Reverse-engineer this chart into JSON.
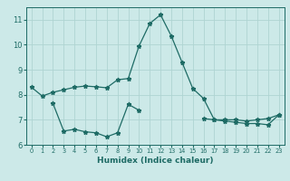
{
  "xlabel": "Humidex (Indice chaleur)",
  "background_color": "#cce9e8",
  "grid_color": "#afd4d2",
  "line_color": "#1e6b65",
  "x_values": [
    0,
    1,
    2,
    3,
    4,
    5,
    6,
    7,
    8,
    9,
    10,
    11,
    12,
    13,
    14,
    15,
    16,
    17,
    18,
    19,
    20,
    21,
    22,
    23
  ],
  "line1_y": [
    8.3,
    7.95,
    8.1,
    8.2,
    8.3,
    8.35,
    8.32,
    8.28,
    8.6,
    8.65,
    9.95,
    10.85,
    11.2,
    10.35,
    9.3,
    8.25,
    7.85,
    7.0,
    7.0,
    7.0,
    6.95,
    7.0,
    7.05,
    7.2
  ],
  "line2_y": [
    null,
    null,
    7.65,
    6.55,
    6.62,
    6.52,
    6.48,
    6.32,
    6.48,
    7.62,
    7.38,
    null,
    null,
    null,
    null,
    null,
    7.05,
    7.0,
    6.95,
    6.9,
    6.85,
    6.85,
    6.8,
    7.2
  ],
  "ylim": [
    6,
    11.5
  ],
  "xlim": [
    -0.5,
    23.5
  ],
  "yticks": [
    6,
    7,
    8,
    9,
    10,
    11
  ],
  "xticks": [
    0,
    1,
    2,
    3,
    4,
    5,
    6,
    7,
    8,
    9,
    10,
    11,
    12,
    13,
    14,
    15,
    16,
    17,
    18,
    19,
    20,
    21,
    22,
    23
  ],
  "figsize": [
    3.2,
    2.0
  ],
  "dpi": 100
}
